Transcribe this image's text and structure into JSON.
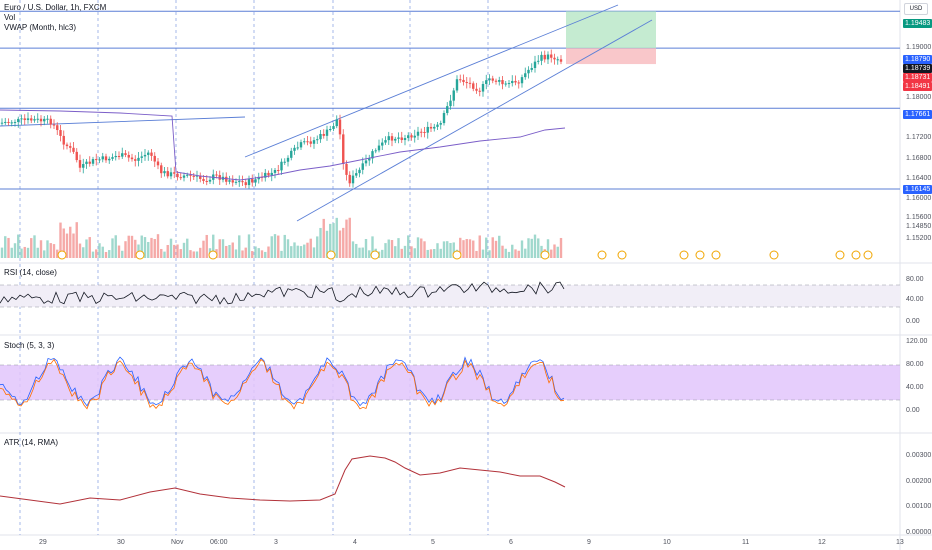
{
  "header": {
    "symbol": "Euro / U.S. Dollar, 1h, FXCM",
    "vol_label": "Vol",
    "vwap_label": "VWAP (Month, hlc3)"
  },
  "currency_button": "USD",
  "panes": {
    "rsi_label": "RSI (14, close)",
    "stoch_label": "Stoch (5, 3, 3)",
    "atr_label": "ATR (14, RMA)"
  },
  "price_axis": [
    "1.19000",
    "1.18000",
    "1.17200",
    "1.16800",
    "1.16400",
    "1.16000",
    "1.15600",
    "1.14850",
    "1.15200"
  ],
  "price_tags": [
    {
      "text": "1.19483",
      "color": "#089981"
    },
    {
      "text": "1.18790",
      "color": "#2962ff"
    },
    {
      "text": "1.18739",
      "color": "#131722"
    },
    {
      "text": "1.18731",
      "color": "#f23645"
    },
    {
      "text": "1.18491",
      "color": "#f23645"
    },
    {
      "text": "1.17661",
      "color": "#2962ff"
    },
    {
      "text": "1.16145",
      "color": "#2962ff"
    }
  ],
  "rsi_axis": [
    "80.00",
    "40.00",
    "0.00"
  ],
  "stoch_axis": [
    "120.00",
    "80.00",
    "40.00",
    "0.00"
  ],
  "atr_axis": [
    "0.00300",
    "0.00200",
    "0.00100",
    "0.00000"
  ],
  "time_axis": [
    "29",
    "30",
    "Nov",
    "06:00",
    "3",
    "4",
    "5",
    "6",
    "9",
    "10",
    "11",
    "12",
    "13"
  ],
  "chart_data": {
    "type": "candlestick",
    "symbol": "EUR/USD",
    "interval": "1h",
    "price_range": [
      1.1485,
      1.196
    ],
    "horizontal_levels": [
      1.19483,
      1.1879,
      1.17661,
      1.16145
    ],
    "position": {
      "entry": 1.1879,
      "target": 1.19483,
      "stop": 1.18491
    },
    "rsi_range": [
      0,
      100
    ],
    "stoch_range": [
      0,
      120
    ],
    "atr_range": [
      0,
      0.0035
    ],
    "colors": {
      "up": "#26a69a",
      "down": "#ef5350",
      "level": "#5b7fd6",
      "vwap": "#7b5ec8",
      "atr": "#b2323a",
      "stoch_band": "#e2c6fb",
      "rsi_band": "#f1eef7"
    }
  }
}
